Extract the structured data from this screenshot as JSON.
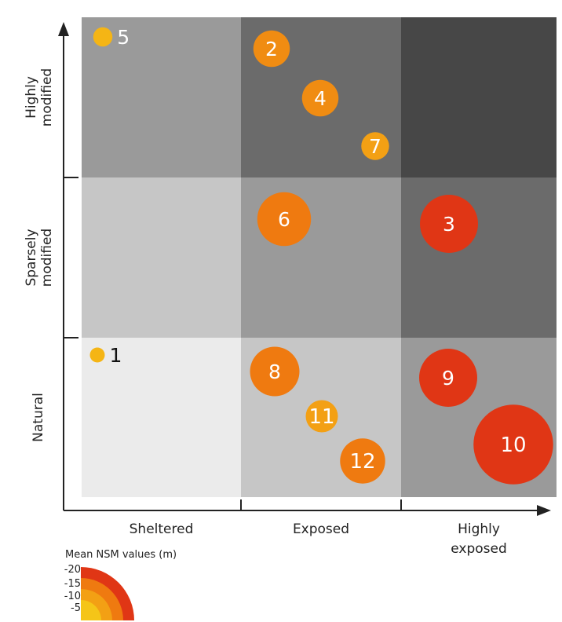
{
  "chart_data": {
    "type": "scatter",
    "title": "",
    "x_categories": [
      "Sheltered",
      "Exposed",
      "Highly exposed"
    ],
    "y_categories": [
      "Natural",
      "Sparsely modified",
      "Highly modified"
    ],
    "xlabel": "",
    "ylabel": "",
    "cell_shades": [
      [
        "#ebebeb",
        "#c6c6c6",
        "#9a9a9a"
      ],
      [
        "#c6c6c6",
        "#9a9a9a",
        "#6b6b6b"
      ],
      [
        "#9a9a9a",
        "#6b6b6b",
        "#474747"
      ]
    ],
    "points": [
      {
        "label": "1",
        "x_cat": "Sheltered",
        "y_cat": "Natural",
        "nsm": -2,
        "color": "#f5b515"
      },
      {
        "label": "2",
        "x_cat": "Exposed",
        "y_cat": "Highly modified",
        "nsm": -7,
        "color": "#f08c12"
      },
      {
        "label": "3",
        "x_cat": "Highly exposed",
        "y_cat": "Sparsely modified",
        "nsm": -12,
        "color": "#e03615"
      },
      {
        "label": "4",
        "x_cat": "Exposed",
        "y_cat": "Highly modified",
        "nsm": -7,
        "color": "#f08c12"
      },
      {
        "label": "5",
        "x_cat": "Sheltered",
        "y_cat": "Highly modified",
        "nsm": -3,
        "color": "#f5b515"
      },
      {
        "label": "6",
        "x_cat": "Exposed",
        "y_cat": "Sparsely modified",
        "nsm": -11,
        "color": "#ef7a10"
      },
      {
        "label": "7",
        "x_cat": "Exposed",
        "y_cat": "Highly modified",
        "nsm": -5,
        "color": "#f3a014"
      },
      {
        "label": "8",
        "x_cat": "Exposed",
        "y_cat": "Natural",
        "nsm": -10,
        "color": "#ef7a10"
      },
      {
        "label": "9",
        "x_cat": "Highly exposed",
        "y_cat": "Natural",
        "nsm": -12,
        "color": "#e03615"
      },
      {
        "label": "10",
        "x_cat": "Highly exposed",
        "y_cat": "Natural",
        "nsm": -17,
        "color": "#e03615"
      },
      {
        "label": "11",
        "x_cat": "Exposed",
        "y_cat": "Natural",
        "nsm": -6,
        "color": "#f3a014"
      },
      {
        "label": "12",
        "x_cat": "Exposed",
        "y_cat": "Natural",
        "nsm": -9,
        "color": "#ef7a10"
      }
    ],
    "legend": {
      "title": "Mean NSM values (m)",
      "entries": [
        {
          "label": "-20",
          "color": "#e03615"
        },
        {
          "label": "-15",
          "color": "#ef7a10"
        },
        {
          "label": "-10",
          "color": "#f3a014"
        },
        {
          "label": "-5",
          "color": "#f5c518"
        }
      ],
      "placement": "bottom-left"
    },
    "grid": true
  }
}
